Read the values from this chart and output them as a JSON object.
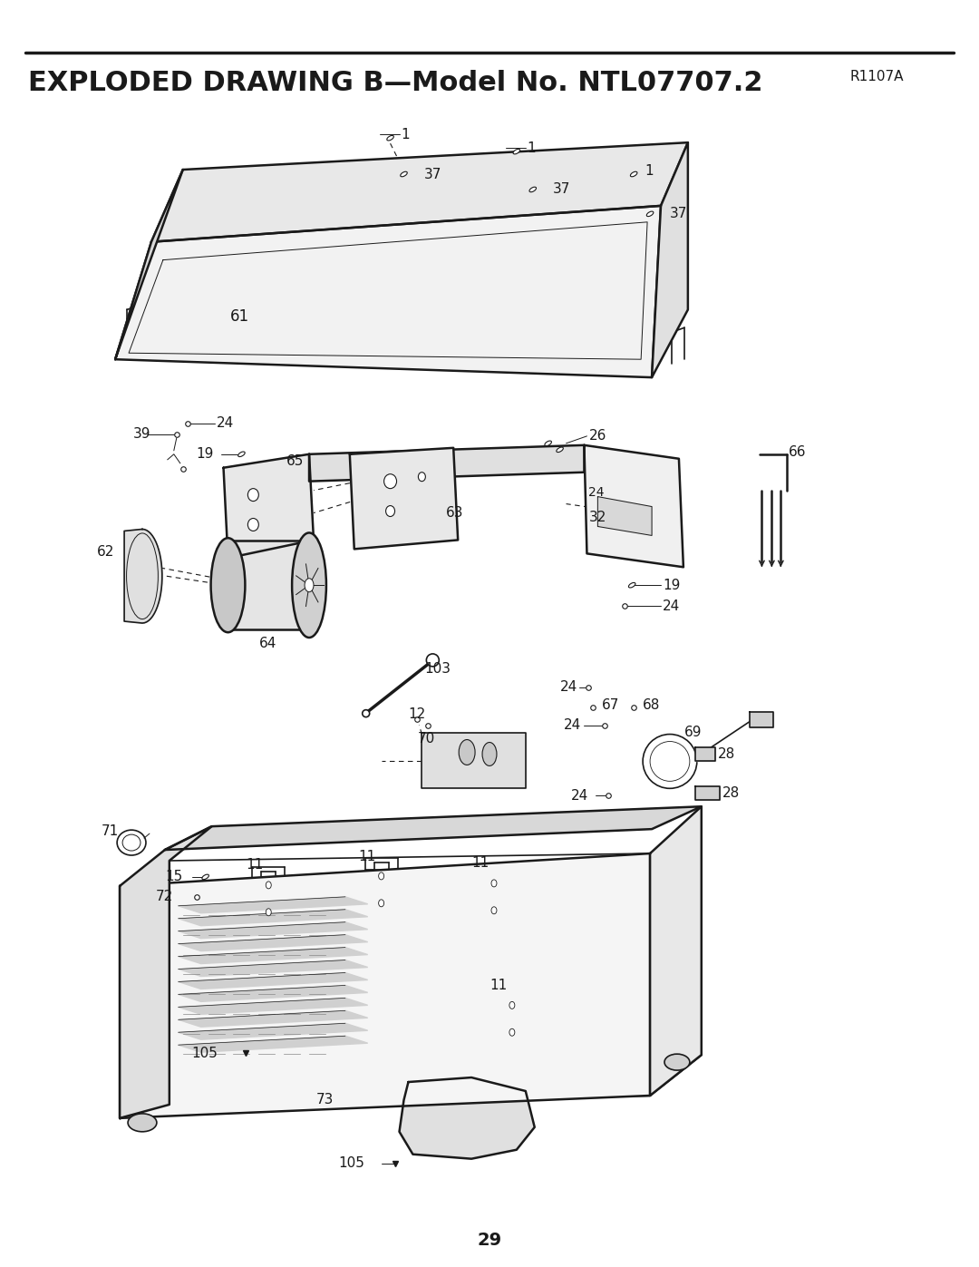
{
  "title": "EXPLODED DRAWING B—Model No. NTL07707.2",
  "title_right": "R1107A",
  "page_number": "29",
  "background_color": "#ffffff",
  "line_color": "#1a1a1a",
  "text_color": "#1a1a1a",
  "title_fontsize": 22,
  "label_fontsize": 11,
  "page_num_fontsize": 14
}
